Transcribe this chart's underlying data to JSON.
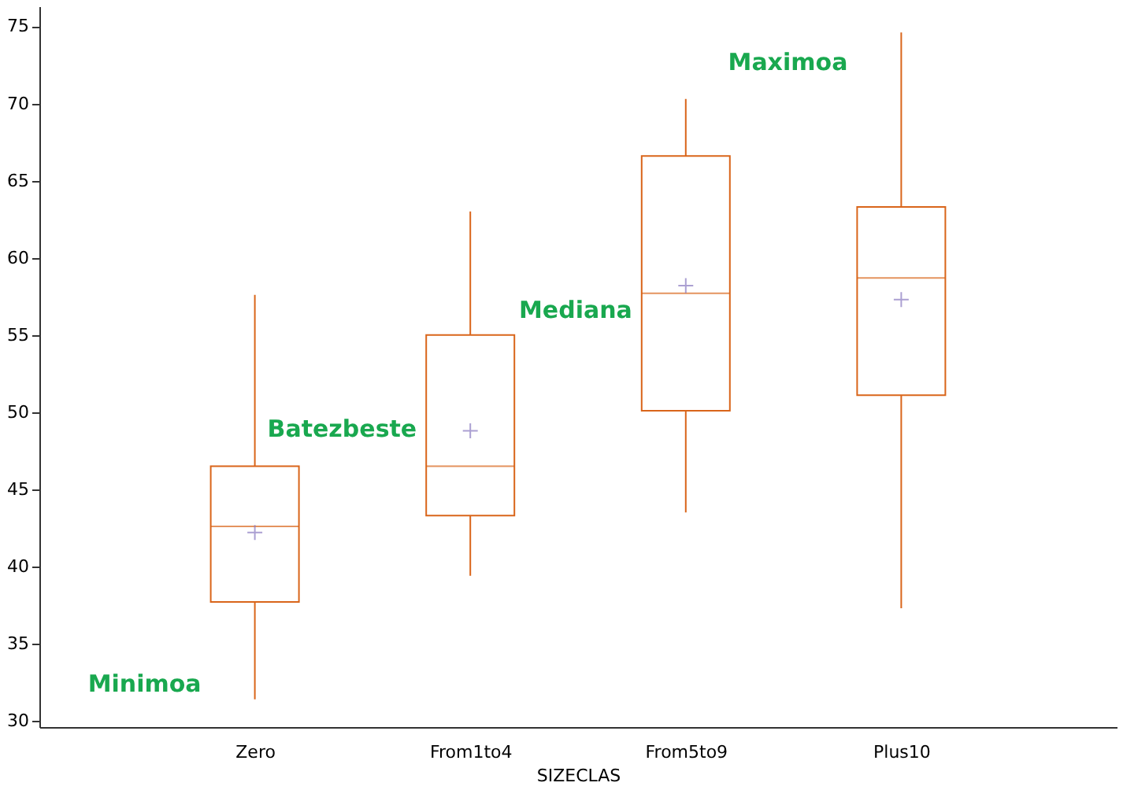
{
  "chart_data": {
    "type": "box",
    "xlabel": "SIZECLAS",
    "categories": [
      "Zero",
      "From1to4",
      "From5to9",
      "Plus10"
    ],
    "series": [
      {
        "color": "#d9651a",
        "boxes": [
          {
            "low": 31.4,
            "q1": 37.7,
            "median": 42.6,
            "q3": 46.5,
            "high": 57.6
          },
          {
            "low": 39.4,
            "q1": 43.3,
            "median": 46.5,
            "q3": 55.0,
            "high": 63.0
          },
          {
            "low": 43.5,
            "q1": 50.1,
            "median": 57.7,
            "q3": 66.6,
            "high": 70.3
          },
          {
            "low": 37.3,
            "q1": 51.1,
            "median": 58.7,
            "q3": 63.3,
            "high": 74.6
          }
        ]
      },
      {
        "type": "scatter",
        "color": "#8878c0",
        "marker": "cross",
        "x": [
          "Zero",
          "From1to4",
          "From5to9",
          "Plus10"
        ],
        "values": [
          42.2,
          48.8,
          58.2,
          57.3
        ]
      }
    ],
    "ylim": [
      29.6,
      76.3
    ],
    "yticks": [
      30,
      35,
      40,
      45,
      50,
      55,
      60,
      65,
      70,
      75
    ],
    "grid": false,
    "annotations": [
      {
        "text": "Minimoa",
        "x": "Zero",
        "y": 32.4
      },
      {
        "text": "Batezbeste",
        "x": "From1to4",
        "y": 48.9
      },
      {
        "text": "Mediana",
        "x": "From5to9",
        "y": 56.6
      },
      {
        "text": "Maximoa",
        "x": "Plus10",
        "y": 72.7
      }
    ]
  }
}
